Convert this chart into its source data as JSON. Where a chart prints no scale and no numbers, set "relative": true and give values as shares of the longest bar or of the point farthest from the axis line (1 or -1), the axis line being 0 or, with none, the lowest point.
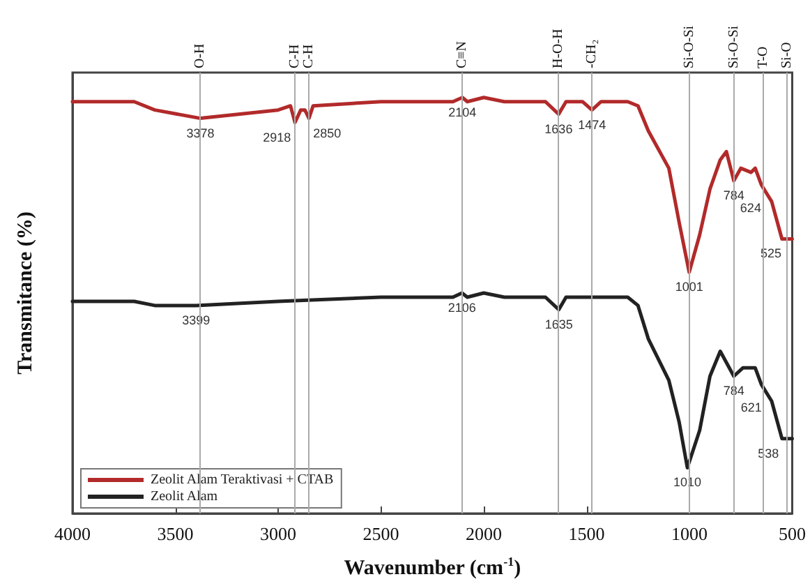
{
  "chart_data": {
    "type": "line",
    "relative": true,
    "xlabel": "Wavenumber (cm$^{-1}$)",
    "ylabel": "Transmitance (%)",
    "xlim": [
      4000,
      500
    ],
    "xticks": [
      4000,
      3500,
      3000,
      2500,
      2000,
      1500,
      1000,
      500
    ],
    "grid": false,
    "legend": "bottom left",
    "marker": "none",
    "line_style": "solid",
    "series": [
      {
        "name": "Zeolit Alam Teraktivasi + CTAB",
        "color": "#b22a2a",
        "x": [
          4000,
          3700,
          3600,
          3378,
          3000,
          2940,
          2918,
          2890,
          2870,
          2850,
          2830,
          2500,
          2150,
          2104,
          2080,
          2000,
          1900,
          1700,
          1636,
          1600,
          1520,
          1474,
          1430,
          1300,
          1250,
          1200,
          1100,
          1050,
          1001,
          950,
          900,
          850,
          820,
          784,
          750,
          700,
          680,
          650,
          600,
          550,
          525,
          500
        ],
        "values": [
          0.99,
          0.99,
          0.97,
          0.95,
          0.97,
          0.98,
          0.94,
          0.97,
          0.97,
          0.95,
          0.98,
          0.99,
          0.99,
          1.0,
          0.99,
          1.0,
          0.99,
          0.99,
          0.96,
          0.99,
          0.99,
          0.97,
          0.99,
          0.99,
          0.98,
          0.92,
          0.83,
          0.7,
          0.58,
          0.67,
          0.78,
          0.85,
          0.87,
          0.8,
          0.83,
          0.82,
          0.83,
          0.79,
          0.75,
          0.66,
          0.66,
          0.66
        ]
      },
      {
        "name": "Zeolit Alam",
        "color": "#222222",
        "x": [
          4000,
          3700,
          3600,
          3399,
          3000,
          2500,
          2150,
          2106,
          2080,
          2000,
          1900,
          1700,
          1635,
          1600,
          1300,
          1250,
          1200,
          1100,
          1050,
          1010,
          950,
          900,
          850,
          784,
          740,
          680,
          650,
          600,
          550,
          538,
          500
        ],
        "values": [
          0.51,
          0.51,
          0.5,
          0.5,
          0.51,
          0.52,
          0.52,
          0.53,
          0.52,
          0.53,
          0.52,
          0.52,
          0.49,
          0.52,
          0.52,
          0.5,
          0.42,
          0.32,
          0.22,
          0.11,
          0.2,
          0.33,
          0.39,
          0.33,
          0.35,
          0.35,
          0.31,
          0.27,
          0.18,
          0.18,
          0.18
        ]
      }
    ],
    "ref_lines": [
      {
        "axis": "x",
        "value": 3378,
        "label": "O-H",
        "color": "#aaaaaa"
      },
      {
        "axis": "x",
        "value": 2918,
        "label": "C-H",
        "color": "#aaaaaa"
      },
      {
        "axis": "x",
        "value": 2850,
        "label": "C-H",
        "color": "#aaaaaa"
      },
      {
        "axis": "x",
        "value": 2104,
        "label": "C≡N",
        "color": "#aaaaaa"
      },
      {
        "axis": "x",
        "value": 1636,
        "label": "H-O-H",
        "color": "#aaaaaa"
      },
      {
        "axis": "x",
        "value": 1474,
        "label": "-CH₂",
        "color": "#aaaaaa"
      },
      {
        "axis": "x",
        "value": 1001,
        "label": "Si-O-Si",
        "color": "#aaaaaa"
      },
      {
        "axis": "x",
        "value": 784,
        "label": "Si-O-Si",
        "color": "#aaaaaa"
      },
      {
        "axis": "x",
        "value": 640,
        "label": "T-O",
        "color": "#aaaaaa"
      },
      {
        "axis": "x",
        "value": 525,
        "label": "Si-O",
        "color": "#aaaaaa"
      }
    ],
    "annotations": [
      {
        "text": "3378",
        "x": 3378,
        "y": 0.95
      },
      {
        "text": "2918",
        "x": 2918,
        "y": 0.94
      },
      {
        "text": "2850",
        "x": 2850,
        "y": 0.95
      },
      {
        "text": "2104",
        "x": 2104,
        "y": 1.0
      },
      {
        "text": "1636",
        "x": 1636,
        "y": 0.96
      },
      {
        "text": "1474",
        "x": 1474,
        "y": 0.97
      },
      {
        "text": "1001",
        "x": 1001,
        "y": 0.58
      },
      {
        "text": "784",
        "x": 784,
        "y": 0.8
      },
      {
        "text": "624",
        "x": 624,
        "y": 0.77
      },
      {
        "text": "525",
        "x": 525,
        "y": 0.66
      },
      {
        "text": "3399",
        "x": 3399,
        "y": 0.5
      },
      {
        "text": "2106",
        "x": 2106,
        "y": 0.53
      },
      {
        "text": "1635",
        "x": 1635,
        "y": 0.49
      },
      {
        "text": "1010",
        "x": 1010,
        "y": 0.11
      },
      {
        "text": "784",
        "x": 784,
        "y": 0.33
      },
      {
        "text": "621",
        "x": 621,
        "y": 0.29
      },
      {
        "text": "538",
        "x": 538,
        "y": 0.18
      }
    ]
  }
}
